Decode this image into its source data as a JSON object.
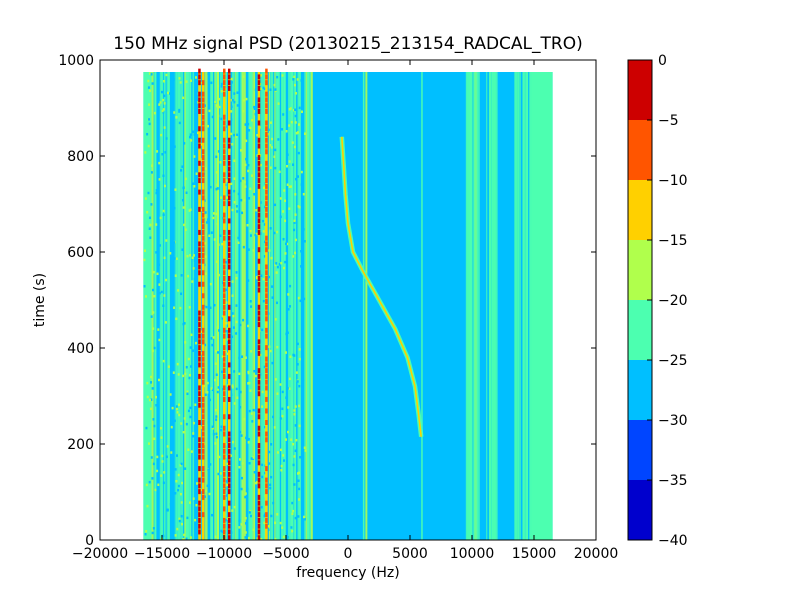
{
  "chart_data": {
    "type": "heatmap",
    "title": "150 MHz signal PSD (20130215_213154_RADCAL_TRO)",
    "xlabel": "frequency (Hz)",
    "ylabel": "time (s)",
    "xlim": [
      -20000,
      20000
    ],
    "ylim": [
      0,
      1000
    ],
    "x_ticks": [
      -20000,
      -15000,
      -10000,
      -5000,
      0,
      5000,
      10000,
      15000,
      20000
    ],
    "y_ticks": [
      0,
      200,
      400,
      600,
      800,
      1000
    ],
    "data_extent": {
      "x": [
        -16500,
        16500
      ],
      "y": [
        0,
        975
      ]
    },
    "background_level": [
      -30,
      -25
    ],
    "colorbar": {
      "levels": [
        -40,
        -35,
        -30,
        -25,
        -20,
        -15,
        -10,
        -5,
        0
      ],
      "colors": [
        "#0000cd",
        "#0045ff",
        "#00bfff",
        "#4cffb0",
        "#b0ff4c",
        "#ffd000",
        "#ff5500",
        "#cd0000"
      ],
      "ticks": [
        0,
        -5,
        -10,
        -15,
        -20,
        -25,
        -30,
        -35,
        -40
      ]
    },
    "doppler_track": {
      "level": "-20 to -15",
      "points": [
        {
          "x": -500,
          "y": 840
        },
        {
          "x": -350,
          "y": 780
        },
        {
          "x": -200,
          "y": 720
        },
        {
          "x": 0,
          "y": 660
        },
        {
          "x": 400,
          "y": 600
        },
        {
          "x": 1200,
          "y": 560
        },
        {
          "x": 2500,
          "y": 500
        },
        {
          "x": 3800,
          "y": 440
        },
        {
          "x": 4800,
          "y": 380
        },
        {
          "x": 5400,
          "y": 320
        },
        {
          "x": 5700,
          "y": 260
        },
        {
          "x": 5900,
          "y": 215
        }
      ]
    },
    "strong_lines": [
      {
        "x": -12000,
        "level": "-5 to 0"
      },
      {
        "x": -11700,
        "level": "-10 to -5"
      },
      {
        "x": -10000,
        "level": "-10 to -5"
      },
      {
        "x": -9600,
        "level": "-5 to 0"
      },
      {
        "x": -7200,
        "level": "-5 to 0"
      },
      {
        "x": -6600,
        "level": "-10 to -5"
      }
    ]
  }
}
